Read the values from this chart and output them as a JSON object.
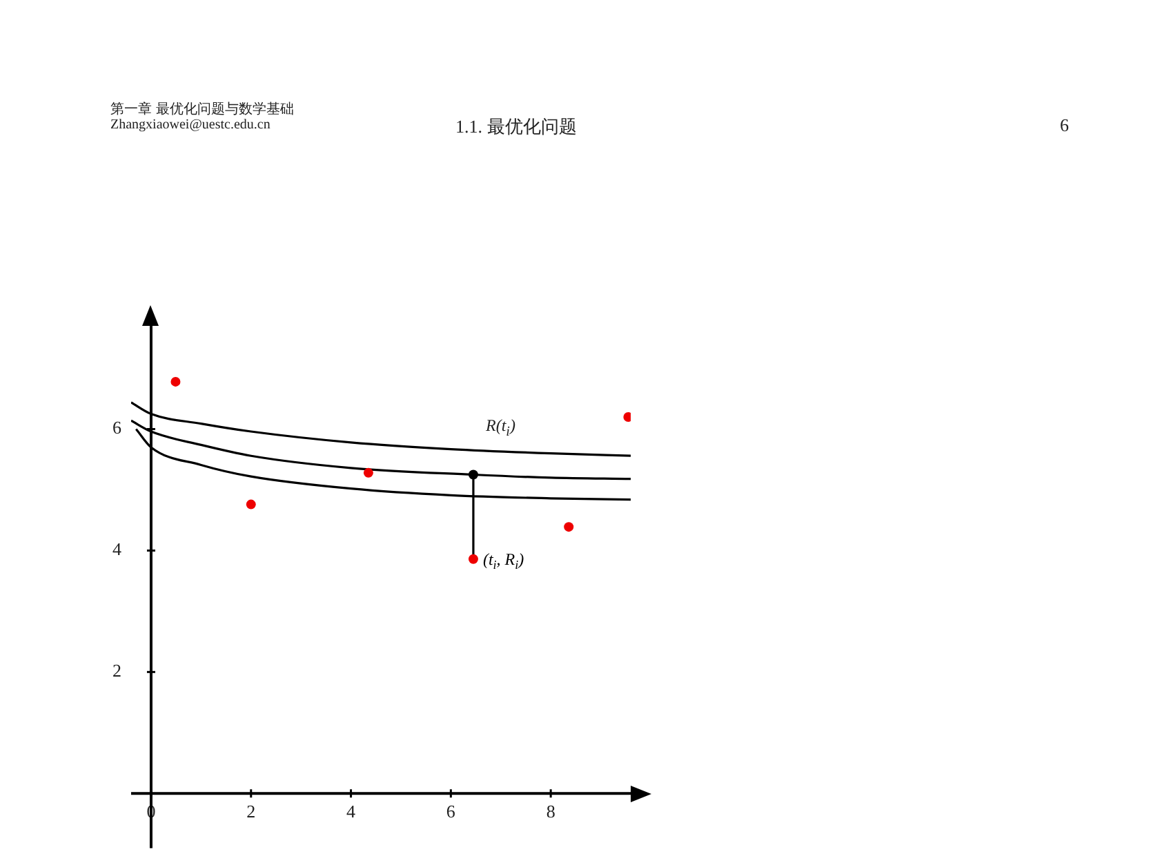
{
  "chart_data": {
    "type": "line",
    "annotations": [
      "第一章 最优化问题与数学基础",
      "Zhangxiaowei@uestc.edu.cn",
      "1.1. 最优化问题",
      "6",
      "R(t$_{i}$)",
      {
        "text": "(t$_{i}$, R$_{i}$)",
        "x": 6.45,
        "y": 3.86
      }
    ],
    "xlim": [
      -0.4,
      9.6
    ],
    "ylim": [
      -0.9,
      7.7
    ],
    "xticks": [
      0,
      2,
      4,
      6,
      8
    ],
    "yticks": [
      2,
      4,
      6
    ],
    "grid": false,
    "legend": false,
    "marker": "none",
    "line_style": "solid",
    "series": [
      {
        "color": "#000000",
        "x": [
          -0.4,
          0,
          1,
          2,
          4,
          6,
          8,
          9.6
        ],
        "values": [
          6.44,
          6.25,
          6.09,
          5.96,
          5.78,
          5.67,
          5.6,
          5.56
        ]
      },
      {
        "color": "#000000",
        "x": [
          -0.4,
          0,
          1,
          2,
          4,
          6.45,
          8,
          9.6
        ],
        "values": [
          6.14,
          5.96,
          5.74,
          5.56,
          5.36,
          5.25,
          5.2,
          5.18
        ]
      },
      {
        "color": "#000000",
        "x": [
          -0.3,
          0,
          1,
          2,
          4,
          6,
          8,
          9.6
        ],
        "values": [
          6.0,
          5.7,
          5.41,
          5.22,
          5.02,
          4.91,
          4.86,
          4.84
        ]
      },
      {
        "color": "#000000",
        "x": [
          6.45,
          6.45
        ],
        "values": [
          5.25,
          3.86
        ]
      },
      {
        "type": "scatter",
        "color": "#000000",
        "marker": "circle",
        "x": [
          6.45
        ],
        "values": [
          5.25
        ]
      },
      {
        "type": "scatter",
        "color": "#ee0000",
        "marker": "circle",
        "x": [
          0.49,
          2.0,
          4.35,
          6.45,
          8.36,
          9.55
        ],
        "values": [
          6.78,
          4.76,
          5.28,
          3.86,
          4.39,
          6.2
        ]
      }
    ]
  }
}
